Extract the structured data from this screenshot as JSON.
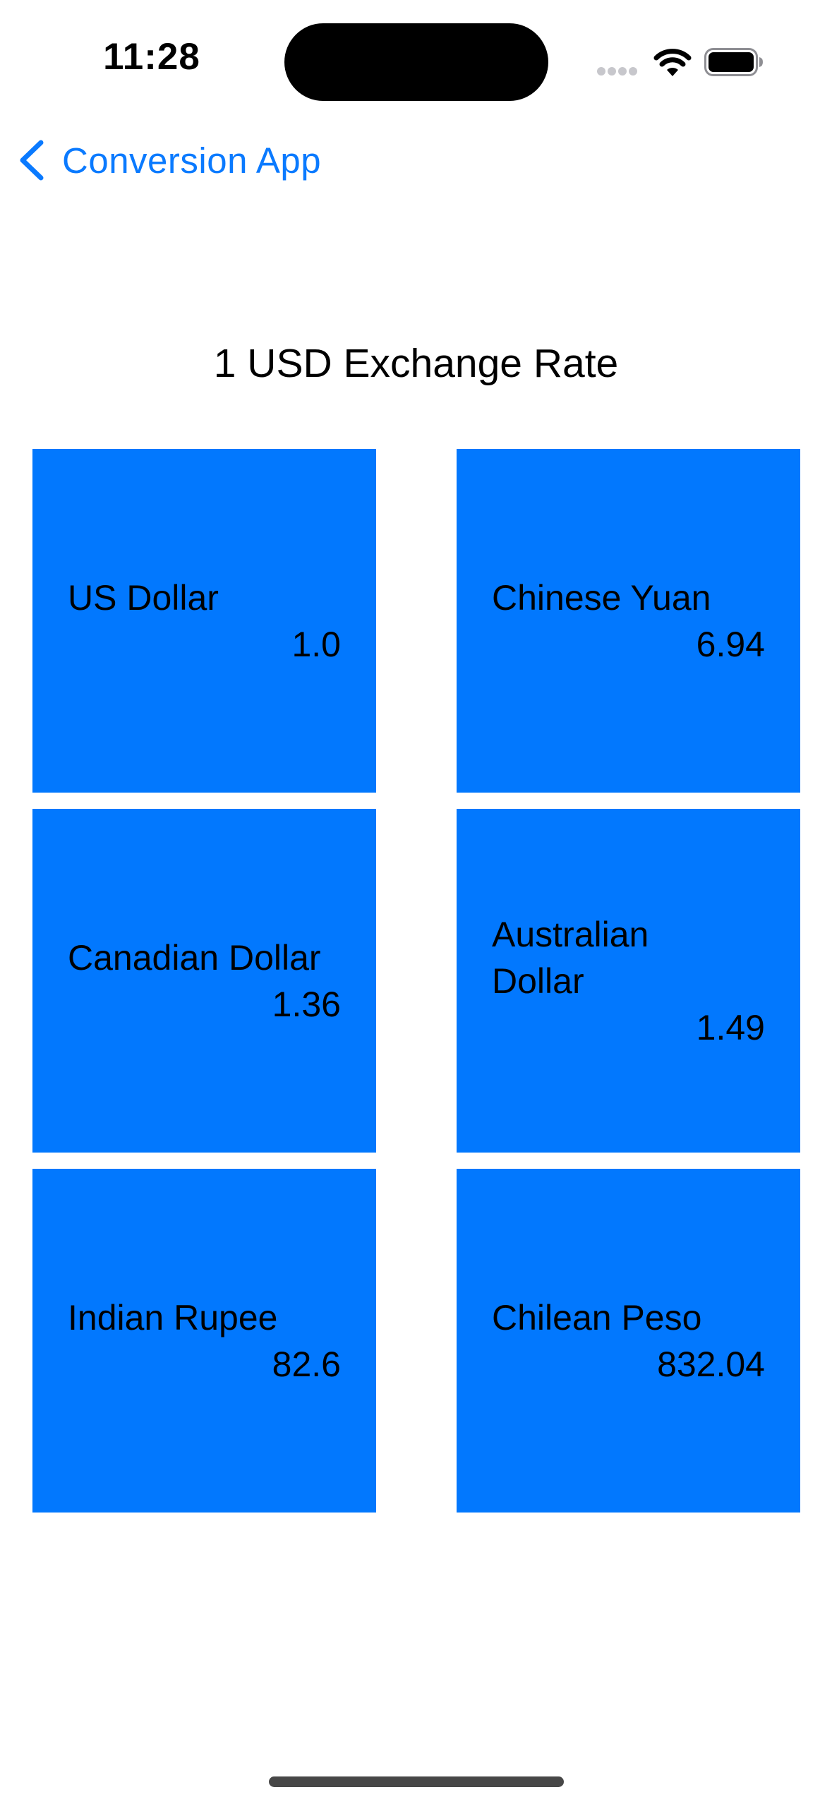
{
  "status_bar": {
    "time": "11:28"
  },
  "nav": {
    "back_label": "Conversion App"
  },
  "page": {
    "title": "1 USD Exchange Rate"
  },
  "currencies": [
    {
      "name": "US Dollar",
      "rate": "1.0"
    },
    {
      "name": "Chinese Yuan",
      "rate": "6.94"
    },
    {
      "name": "Canadian Dollar",
      "rate": "1.36"
    },
    {
      "name": "Australian Dollar",
      "rate": "1.49"
    },
    {
      "name": "Indian Rupee",
      "rate": "82.6"
    },
    {
      "name": "Chilean Peso",
      "rate": "832.04"
    }
  ],
  "colors": {
    "tile": "#0278fe",
    "accent": "#0a7aff",
    "background": "#ffffff",
    "text": "#000000"
  },
  "icons": {
    "back": "chevron-left-icon",
    "signal": "cellular-signal-icon",
    "wifi": "wifi-icon",
    "battery": "battery-icon"
  }
}
